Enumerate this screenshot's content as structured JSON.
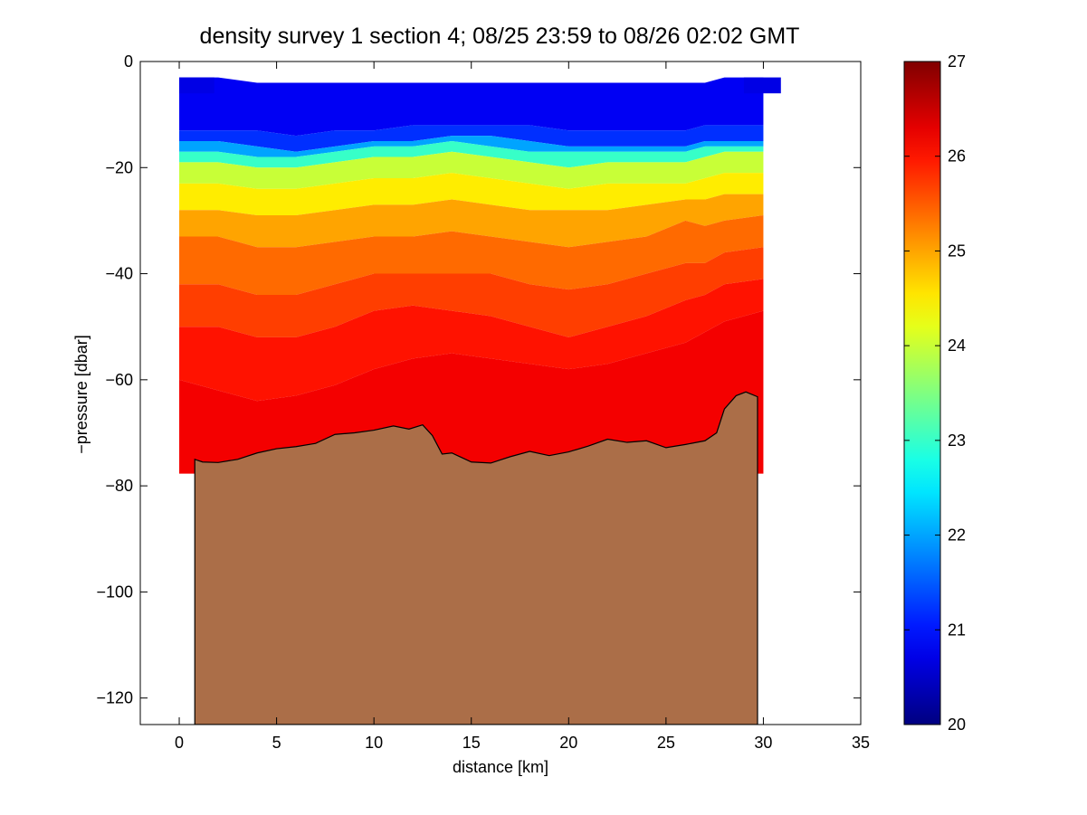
{
  "chart_data": {
    "type": "heatmap",
    "title": "density survey 1 section 4; 08/25 23:59 to 08/26 02:02 GMT",
    "xlabel": "distance [km]",
    "ylabel": "−pressure [dbar]",
    "xlim": [
      -2,
      35
    ],
    "ylim": [
      -125,
      0
    ],
    "xticks": [
      0,
      5,
      10,
      15,
      20,
      25,
      30,
      35
    ],
    "xtick_labels": [
      "0",
      "5",
      "10",
      "15",
      "20",
      "25",
      "30",
      "35"
    ],
    "yticks": [
      0,
      -20,
      -40,
      -60,
      -80,
      -100,
      -120
    ],
    "ytick_labels": [
      "0",
      "−20",
      "−40",
      "−60",
      "−80",
      "−100",
      "−120"
    ],
    "colorbar": {
      "range": [
        20,
        27
      ],
      "ticks": [
        20,
        21,
        22,
        23,
        24,
        25,
        26,
        27
      ],
      "tick_labels": [
        "20",
        "21",
        "22",
        "23",
        "24",
        "25",
        "26",
        "27"
      ],
      "colormap": "jet"
    },
    "grid": false,
    "density_layers": [
      {
        "value": 20.8,
        "depths": [
          -3,
          -3,
          -4,
          -4,
          -4,
          -4,
          -4,
          -4,
          -4,
          -4,
          -4,
          -4,
          -4,
          -4,
          -4,
          -3,
          -3
        ]
      },
      {
        "value": 21.2,
        "depths": [
          -13,
          -13,
          -13,
          -14,
          -13,
          -13,
          -12,
          -12,
          -12,
          -12,
          -13,
          -13,
          -13,
          -13,
          -12,
          -12,
          -12
        ]
      },
      {
        "value": 22.0,
        "depths": [
          -15,
          -15,
          -16,
          -17,
          -16,
          -15,
          -15,
          -14,
          -14,
          -15,
          -16,
          -16,
          -16,
          -16,
          -15,
          -15,
          -15
        ]
      },
      {
        "value": 23.0,
        "depths": [
          -17,
          -17,
          -18,
          -18,
          -17,
          -16,
          -16,
          -15,
          -16,
          -17,
          -17,
          -17,
          -17,
          -17,
          -16,
          -16,
          -16
        ]
      },
      {
        "value": 24.0,
        "depths": [
          -19,
          -19,
          -20,
          -20,
          -19,
          -18,
          -18,
          -17,
          -18,
          -19,
          -20,
          -19,
          -19,
          -19,
          -18,
          -17,
          -17
        ]
      },
      {
        "value": 24.5,
        "depths": [
          -23,
          -23,
          -24,
          -24,
          -23,
          -22,
          -22,
          -21,
          -22,
          -23,
          -24,
          -23,
          -23,
          -23,
          -22,
          -21,
          -21
        ]
      },
      {
        "value": 25.0,
        "depths": [
          -28,
          -28,
          -29,
          -29,
          -28,
          -27,
          -27,
          -26,
          -27,
          -28,
          -28,
          -28,
          -27,
          -26,
          -26,
          -25,
          -25
        ]
      },
      {
        "value": 25.4,
        "depths": [
          -33,
          -33,
          -35,
          -35,
          -34,
          -33,
          -33,
          -32,
          -33,
          -34,
          -35,
          -34,
          -33,
          -30,
          -31,
          -30,
          -29
        ]
      },
      {
        "value": 25.7,
        "depths": [
          -42,
          -42,
          -44,
          -44,
          -42,
          -40,
          -40,
          -40,
          -40,
          -42,
          -43,
          -42,
          -40,
          -38,
          -38,
          -36,
          -35
        ]
      },
      {
        "value": 26.0,
        "depths": [
          -50,
          -50,
          -52,
          -52,
          -50,
          -47,
          -46,
          -47,
          -48,
          -50,
          -52,
          -50,
          -48,
          -45,
          -44,
          -42,
          -41
        ]
      },
      {
        "value": 26.2,
        "depths": [
          -60,
          -62,
          -64,
          -63,
          -61,
          -58,
          -56,
          -55,
          -56,
          -57,
          -58,
          -57,
          -55,
          -53,
          -51,
          -49,
          -47
        ]
      }
    ],
    "density_layer_x": [
      0,
      2,
      4,
      6,
      8,
      10,
      12,
      14,
      16,
      18,
      20,
      22,
      24,
      26,
      27,
      28,
      30
    ],
    "data_extent": {
      "x": [
        0,
        30
      ],
      "top_depth": -3,
      "surface_cells": {
        "x": [
          0,
          1.8
        ],
        "depth": -3
      },
      "right_cells": {
        "x": [
          29,
          30.9
        ],
        "depth": -6
      }
    },
    "bathymetry": {
      "x": [
        0.8,
        1.2,
        2,
        3,
        4,
        5,
        6,
        7,
        8,
        9,
        10,
        11,
        11.8,
        12.5,
        13,
        13.5,
        14,
        15,
        16,
        17,
        18,
        19,
        20,
        21,
        22,
        23,
        24,
        25,
        26,
        27,
        27.6,
        28,
        28.6,
        29.1,
        29.7
      ],
      "depth": [
        -75,
        -75.5,
        -75.6,
        -75,
        -73.8,
        -73,
        -72.6,
        -72,
        -70.3,
        -70,
        -69.5,
        -68.7,
        -69.3,
        -68.5,
        -70.5,
        -74,
        -73.8,
        -75.5,
        -75.7,
        -74.5,
        -73.5,
        -74.3,
        -73.6,
        -72.5,
        -71.2,
        -71.8,
        -71.5,
        -72.8,
        -72.2,
        -71.5,
        -70,
        -65.5,
        -63,
        -62.3,
        -63.2
      ],
      "color": "#ab6e48"
    }
  }
}
